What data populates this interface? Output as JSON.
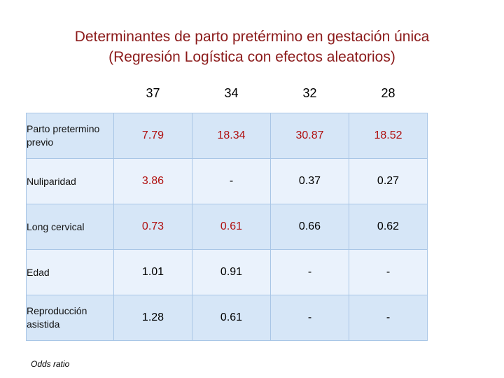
{
  "title": {
    "line1": "Determinantes de parto pretérmino en gestación única",
    "line2": "(Regresión Logística con efectos aleatorios)"
  },
  "table": {
    "headers": [
      "37",
      "34",
      "32",
      "28"
    ],
    "rows": [
      {
        "label": "Parto pretermino previo",
        "values": [
          "7.79",
          "18.34",
          "30.87",
          "18.52"
        ]
      },
      {
        "label": "Nuliparidad",
        "values": [
          "3.86",
          "-",
          "0.37",
          "0.27"
        ]
      },
      {
        "label": "Long cervical",
        "values": [
          "0.73",
          "0.61",
          "0.66",
          "0.62"
        ]
      },
      {
        "label": "Edad",
        "values": [
          "1.01",
          "0.91",
          "-",
          "-"
        ]
      },
      {
        "label": "Reproducción asistida",
        "values": [
          "1.28",
          "0.61",
          "-",
          "-"
        ]
      }
    ]
  },
  "footnote": "Odds ratio",
  "colors": {
    "title": "#8b1a1a",
    "value_red": "#b01010",
    "row_odd": "#d6e6f7",
    "row_even": "#eaf2fc"
  }
}
